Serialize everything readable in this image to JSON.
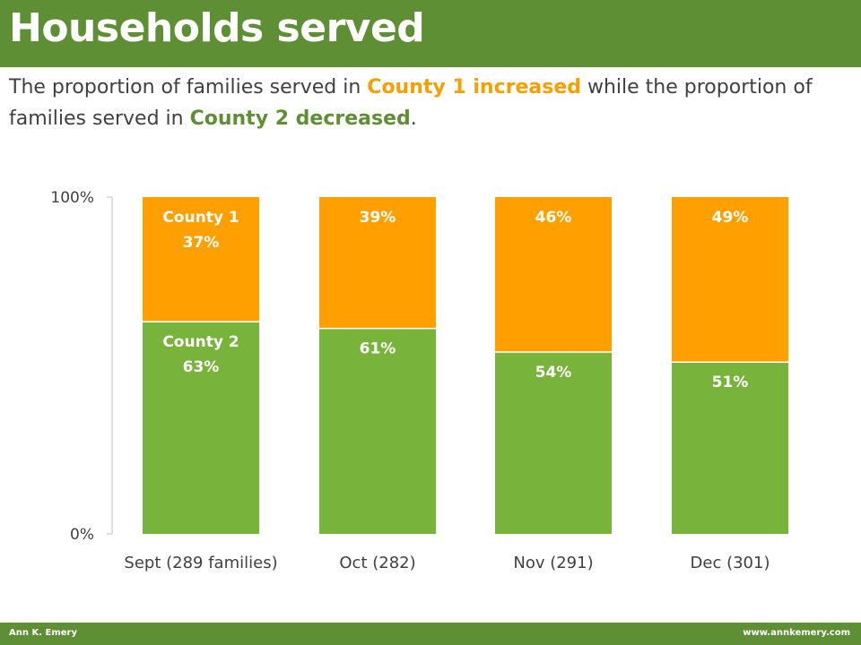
{
  "header": {
    "title": "Households served"
  },
  "subtitle": {
    "part1": "The proportion of families served in ",
    "highlight1": "County 1 increased",
    "part2": " while the proportion of families served in ",
    "highlight2": "County 2 decreased",
    "part3": "."
  },
  "colors": {
    "brand_green": "#5f8f35",
    "county1_orange": "#ffa000",
    "county2_green": "#78b43c",
    "highlight_orange": "#f79f00"
  },
  "chart_data": {
    "type": "bar",
    "stacked": true,
    "percent_stacked": true,
    "title": "",
    "xlabel": "",
    "ylabel": "",
    "ylim": [
      0,
      100
    ],
    "y_tick_labels": [
      "0%",
      "100%"
    ],
    "y_ticks": [
      0,
      100
    ],
    "grid": false,
    "legend": "none",
    "categories": [
      "Sept (289 families)",
      "Oct (282)",
      "Nov (291)",
      "Dec (301)"
    ],
    "series": [
      {
        "name": "County 2",
        "color": "#78b43c",
        "values": [
          63,
          61,
          54,
          51
        ],
        "labels": [
          "63%",
          "61%",
          "54%",
          "51%"
        ]
      },
      {
        "name": "County 1",
        "color": "#ffa000",
        "values": [
          37,
          39,
          46,
          49
        ],
        "labels": [
          "37%",
          "39%",
          "46%",
          "49%"
        ]
      }
    ]
  },
  "footer": {
    "left": "Ann K. Emery",
    "right": "www.annkemery.com"
  }
}
